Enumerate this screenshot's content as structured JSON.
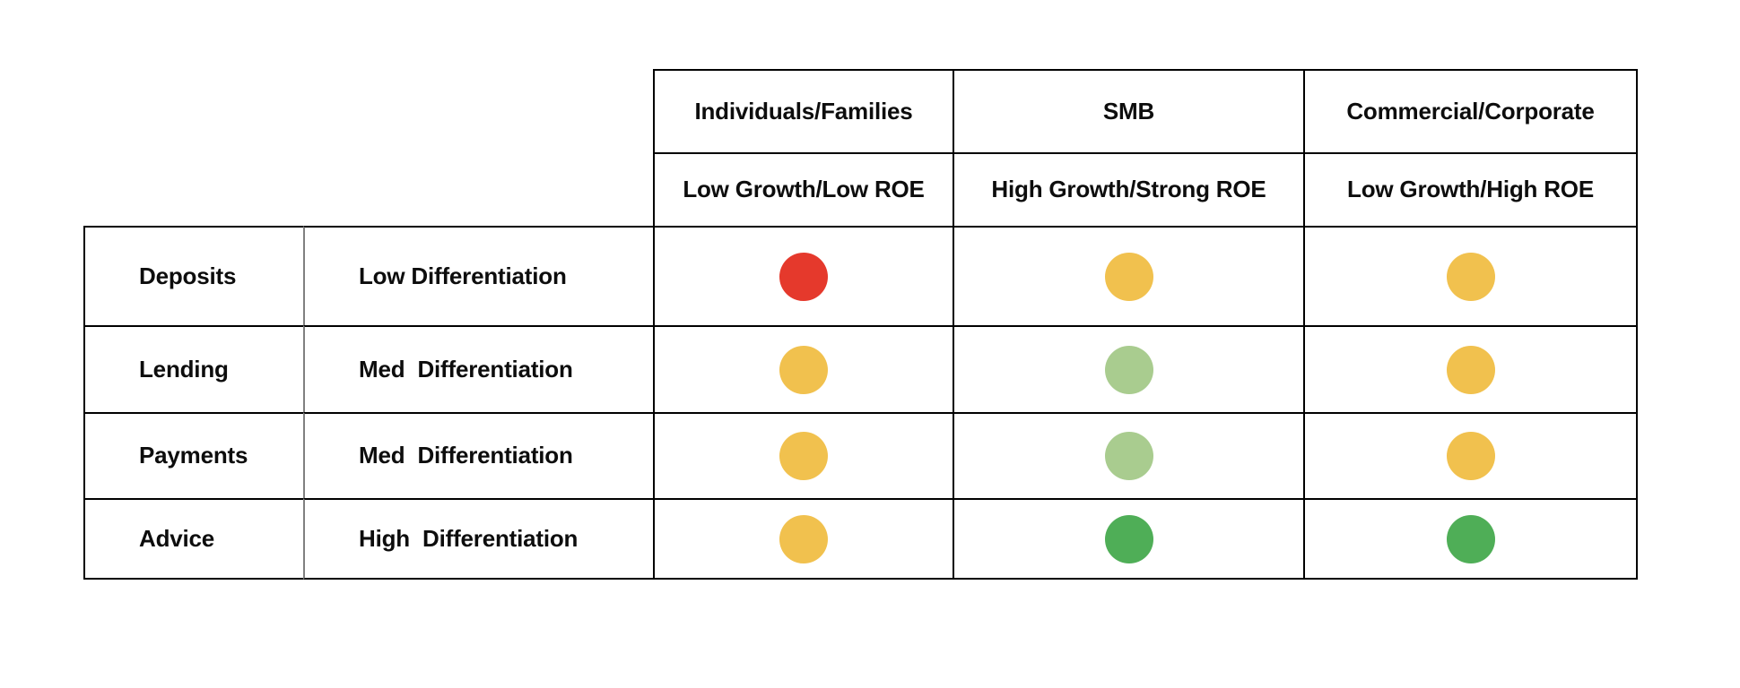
{
  "matrix": {
    "segments": [
      {
        "name": "Individuals/Families",
        "descriptor": "Low Growth/Low ROE"
      },
      {
        "name": "SMB",
        "descriptor": "High Growth/Strong ROE"
      },
      {
        "name": "Commercial/Corporate",
        "descriptor": "Low Growth/High ROE"
      }
    ],
    "products": [
      {
        "name": "Deposits",
        "differentiation": "Low Differentiation",
        "ratings": [
          "red",
          "yellow",
          "yellow"
        ]
      },
      {
        "name": "Lending",
        "differentiation": "Med  Differentiation",
        "ratings": [
          "yellow",
          "light-green",
          "yellow"
        ]
      },
      {
        "name": "Payments",
        "differentiation": "Med  Differentiation",
        "ratings": [
          "yellow",
          "light-green",
          "yellow"
        ]
      },
      {
        "name": "Advice",
        "differentiation": "High  Differentiation",
        "ratings": [
          "yellow",
          "green",
          "green"
        ]
      }
    ],
    "rating_colors": {
      "red": "#E5392C",
      "yellow": "#F1C14E",
      "light-green": "#A9CC8F",
      "green": "#4FAE57"
    },
    "border_color": "#000000",
    "divider_color": "#808080"
  }
}
